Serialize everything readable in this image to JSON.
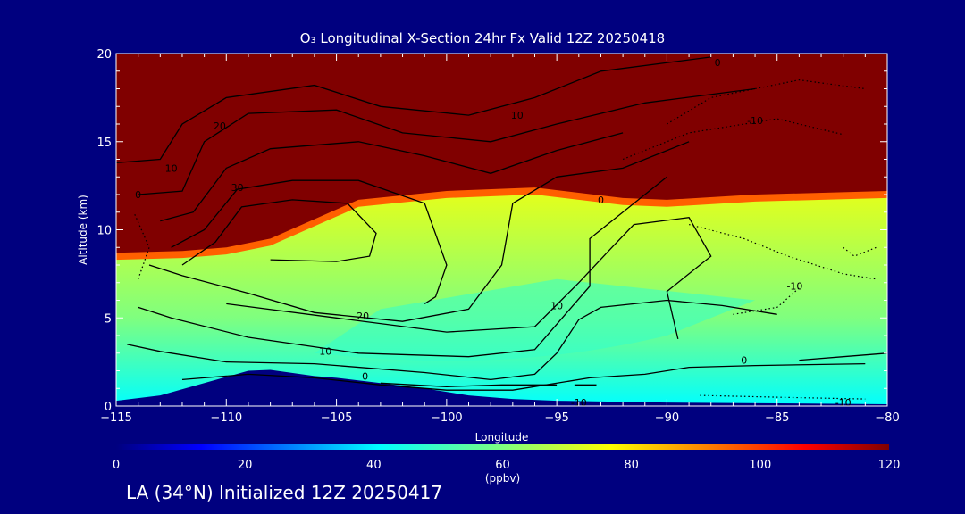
{
  "chart_data": {
    "type": "heatmap",
    "title": "O₃ Longitudinal X-Section 24hr  Fx Valid 12Z 20250418",
    "xlabel": "Longitude",
    "ylabel": "Altitude (km)",
    "xlim": [
      -115,
      -80
    ],
    "ylim": [
      0,
      20
    ],
    "xticks": [
      -115,
      -110,
      -105,
      -100,
      -95,
      -90,
      -85,
      -80
    ],
    "yticks": [
      0,
      5,
      10,
      15,
      20
    ],
    "colorbar": {
      "min": 0,
      "max": 120,
      "ticks": [
        0,
        20,
        40,
        60,
        80,
        100,
        120
      ],
      "label": "(ppbv)",
      "colormap": "jet"
    },
    "tropopause_km": [
      [
        -115,
        8.3
      ],
      [
        -112,
        8.4
      ],
      [
        -110,
        8.6
      ],
      [
        -108,
        9.1
      ],
      [
        -106,
        10.2
      ],
      [
        -104,
        11.3
      ],
      [
        -100,
        11.8
      ],
      [
        -96,
        12.0
      ],
      [
        -92,
        11.4
      ],
      [
        -90,
        11.3
      ],
      [
        -86,
        11.6
      ],
      [
        -80,
        11.8
      ]
    ],
    "terrain_km": [
      [
        -115,
        0.3
      ],
      [
        -113,
        0.6
      ],
      [
        -111,
        1.3
      ],
      [
        -109,
        2.0
      ],
      [
        -108,
        2.05
      ],
      [
        -106,
        1.7
      ],
      [
        -105,
        1.6
      ],
      [
        -103,
        1.3
      ],
      [
        -101,
        1.0
      ],
      [
        -99,
        0.6
      ],
      [
        -97,
        0.4
      ],
      [
        -95,
        0.3
      ],
      [
        -90,
        0.2
      ],
      [
        -85,
        0.15
      ],
      [
        -80,
        0.1
      ]
    ],
    "contour_labels": [
      "-10",
      "0",
      "10",
      "20",
      "30"
    ]
  },
  "subtitle": "LA (34°N) Initialized 12Z 20250417"
}
